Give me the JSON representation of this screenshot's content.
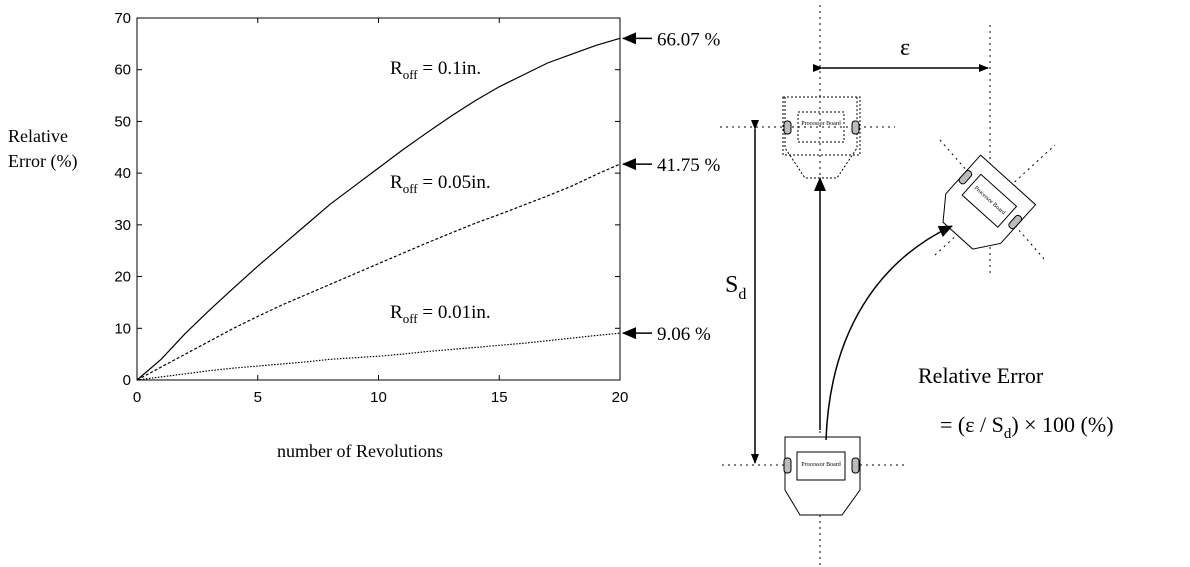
{
  "chart_data": {
    "type": "line",
    "ylabel": [
      "Relative",
      "Error (%)"
    ],
    "xlabel": "number of Revolutions",
    "x": [
      0,
      1,
      2,
      3,
      4,
      5,
      6,
      7,
      8,
      9,
      10,
      11,
      12,
      13,
      14,
      15,
      16,
      17,
      18,
      19,
      20
    ],
    "xlim": [
      0,
      20
    ],
    "xticks": [
      0,
      5,
      10,
      15,
      20
    ],
    "ylim": [
      0,
      70
    ],
    "yticks": [
      0,
      10,
      20,
      30,
      40,
      50,
      60,
      70
    ],
    "series": [
      {
        "name": "R",
        "subscript": "off",
        "suffix": " = 0.1in.",
        "color": "#000000",
        "style": "solid",
        "end_label": "66.07 %",
        "values": [
          0,
          4,
          9,
          13.5,
          17.8,
          22,
          26,
          30,
          34,
          37.5,
          41,
          44.5,
          47.8,
          51,
          54,
          56.7,
          59,
          61.3,
          63,
          64.7,
          66.07
        ]
      },
      {
        "name": "R",
        "subscript": "off",
        "suffix": " = 0.05in.",
        "color": "#000000",
        "style": "dashed",
        "end_label": "41.75 %",
        "values": [
          0,
          2.5,
          5,
          7.5,
          10,
          12.3,
          14.5,
          16.5,
          18.5,
          20.5,
          22.5,
          24.5,
          26.5,
          28.4,
          30.3,
          32,
          33.8,
          35.6,
          37.5,
          39.7,
          41.75
        ]
      },
      {
        "name": "R",
        "subscript": "off",
        "suffix": " = 0.01in.",
        "color": "#000000",
        "style": "dotted",
        "end_label": "9.06 %",
        "values": [
          0,
          0.6,
          1.2,
          1.8,
          2.3,
          2.7,
          3.1,
          3.5,
          4,
          4.3,
          4.6,
          5,
          5.5,
          5.9,
          6.3,
          6.7,
          7.1,
          7.6,
          8.1,
          8.6,
          9.06
        ]
      }
    ]
  },
  "diagram": {
    "epsilon": "ε",
    "distance": "S",
    "distance_sub": "d",
    "board_label": "Processor Board",
    "formula_title": "Relative Error",
    "formula_start": "= (ε / S",
    "formula_sub": "d",
    "formula_end": ") × 100 (%)"
  }
}
